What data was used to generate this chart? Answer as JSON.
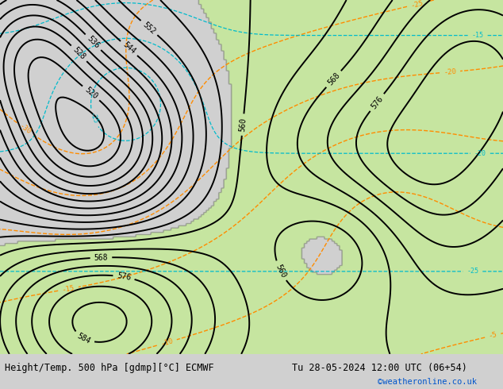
{
  "title_left": "Height/Temp. 500 hPa [gdmp][°C] ECMWF",
  "title_right": "Tu 28-05-2024 12:00 UTC (06+54)",
  "watermark": "©weatheronline.co.uk",
  "bg_color": "#d0d0d0",
  "land_color": "#c8c8c8",
  "sea_color": "#d8d8d8",
  "green_fill": "#c8e6a0",
  "contour_color_z500": "#000000",
  "contour_color_temp_neg": "#ff8c00",
  "contour_color_temp_pos": "#00aa00",
  "contour_color_cold": "#00cccc",
  "bottom_bar_color": "#e8e8e8",
  "font_size_labels": 7,
  "font_size_bottom": 8,
  "lon_min": -30,
  "lon_max": 50,
  "lat_min": 25,
  "lat_max": 75
}
